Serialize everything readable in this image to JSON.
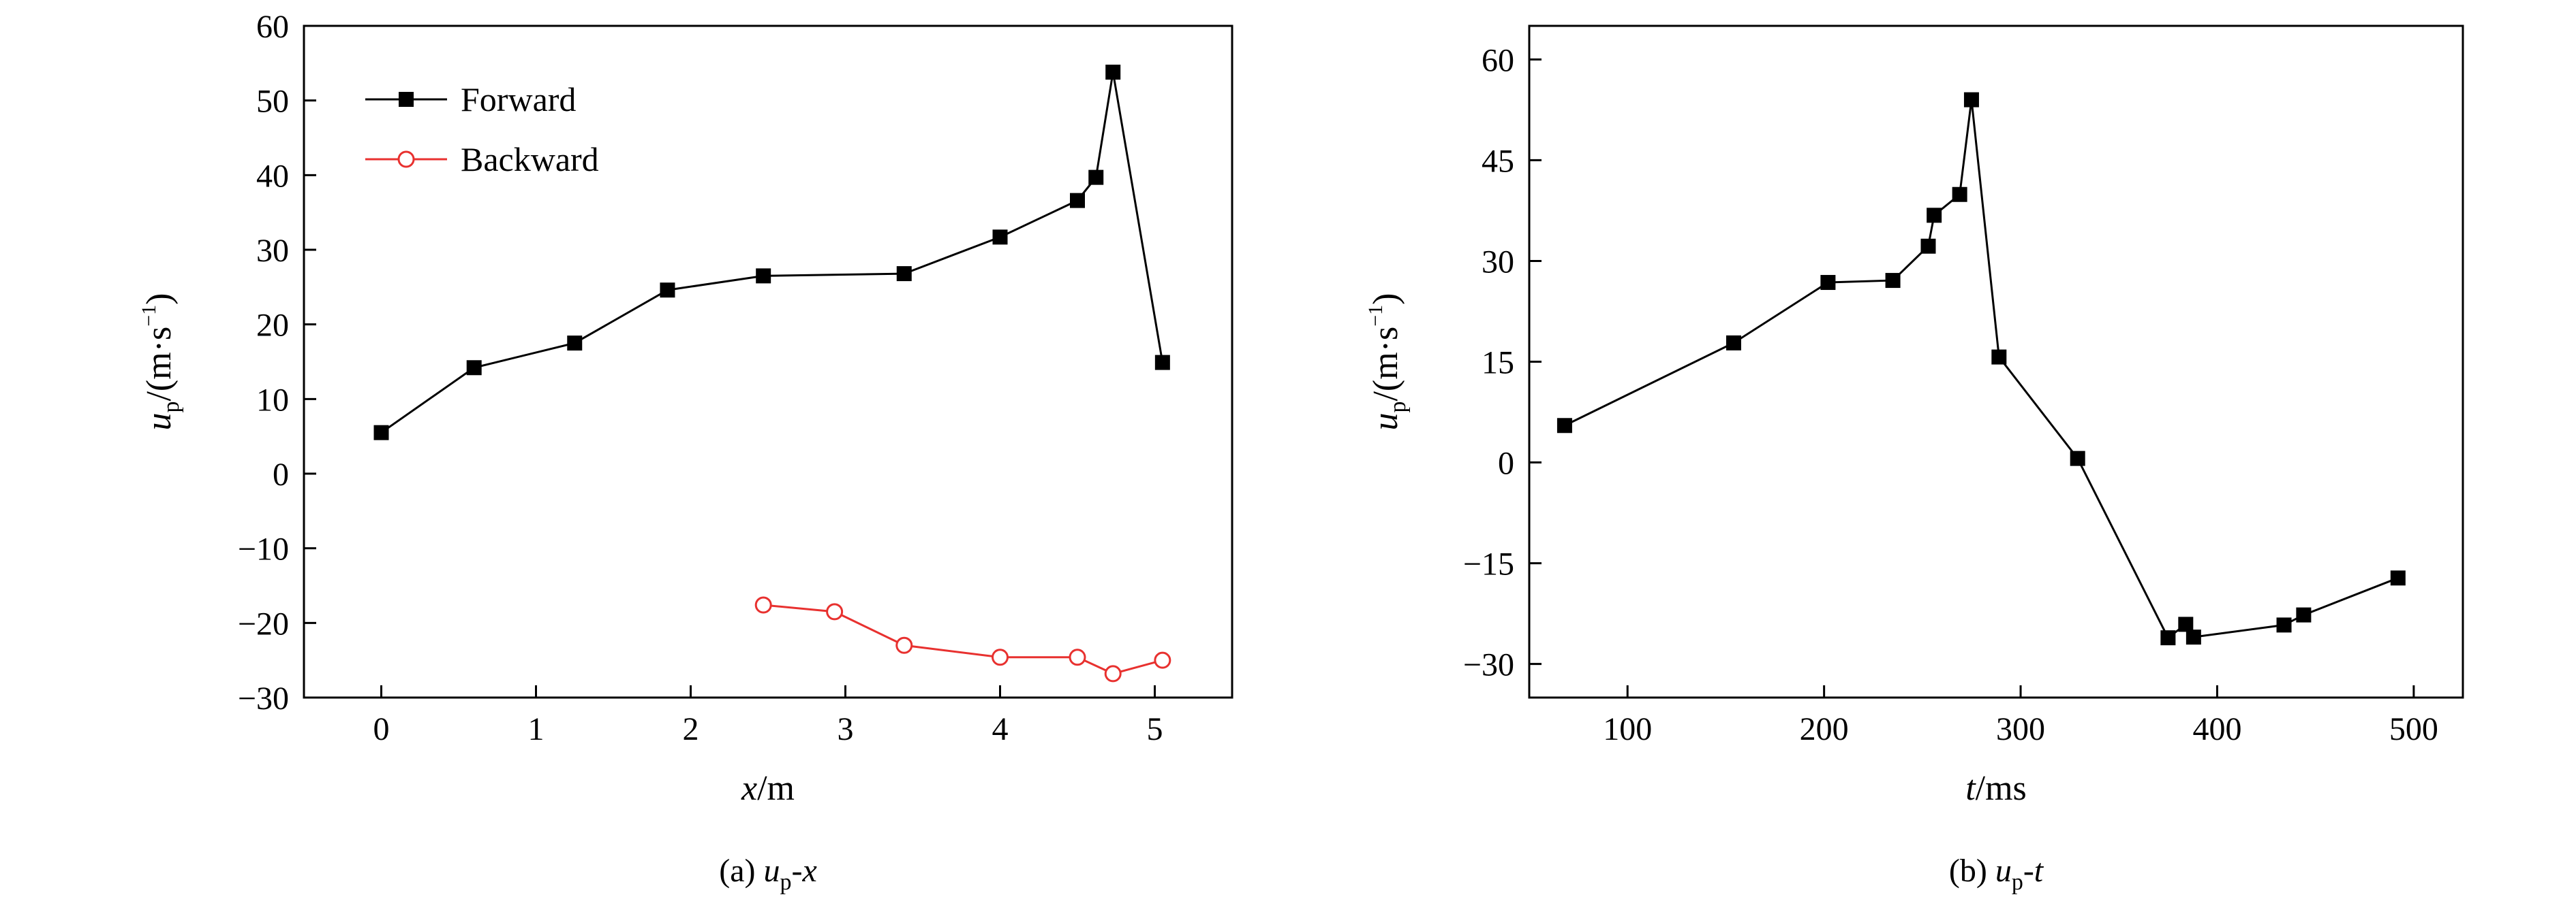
{
  "chart_data": [
    {
      "type": "line",
      "caption": {
        "prefix": "(a) ",
        "var": "u",
        "sub": "p",
        "suffix": "-x"
      },
      "xlabel": {
        "var": "x",
        "unit": "/m"
      },
      "ylabel": {
        "var": "u",
        "sub": "p",
        "unit": "/(m·s",
        "sup": "−1",
        "close": ")"
      },
      "xlim": [
        -0.5,
        5.5
      ],
      "ylim": [
        -30,
        60
      ],
      "xticks": [
        0,
        1,
        2,
        3,
        4,
        5
      ],
      "xtick_labels": [
        "0",
        "1",
        "2",
        "3",
        "4",
        "5"
      ],
      "yticks": [
        -30,
        -20,
        -10,
        0,
        10,
        20,
        30,
        40,
        50,
        60
      ],
      "ytick_labels": [
        "−30",
        "−20",
        "−10",
        "0",
        "10",
        "20",
        "30",
        "40",
        "50",
        "60"
      ],
      "legend_position": "top-left",
      "series": [
        {
          "name": "Forward",
          "marker": "filled-square",
          "color": "#000000",
          "x": [
            0,
            0.6,
            1.25,
            1.85,
            2.47,
            3.38,
            4.0,
            4.5,
            4.62,
            4.73,
            5.05
          ],
          "y": [
            5.5,
            14.2,
            17.5,
            24.6,
            26.5,
            26.8,
            31.7,
            36.6,
            39.7,
            53.8,
            14.9
          ]
        },
        {
          "name": "Backward",
          "marker": "open-circle",
          "color": "#e8312f",
          "x": [
            2.47,
            2.93,
            3.38,
            4.0,
            4.5,
            4.73,
            5.05
          ],
          "y": [
            -17.6,
            -18.5,
            -23.0,
            -24.6,
            -24.6,
            -26.8,
            -25.0
          ]
        }
      ]
    },
    {
      "type": "line",
      "caption": {
        "prefix": "(b) ",
        "var": "u",
        "sub": "p",
        "suffix": "-t"
      },
      "xlabel": {
        "var": "t",
        "unit": "/ms"
      },
      "ylabel": {
        "var": "u",
        "sub": "p",
        "unit": "/(m·s",
        "sup": "−1",
        "close": ")"
      },
      "xlim": [
        50,
        525
      ],
      "ylim": [
        -35,
        65
      ],
      "xticks": [
        100,
        200,
        300,
        400,
        500
      ],
      "xtick_labels": [
        "100",
        "200",
        "300",
        "400",
        "500"
      ],
      "yticks": [
        -30,
        -15,
        0,
        15,
        30,
        45,
        60
      ],
      "ytick_labels": [
        "−30",
        "−15",
        "0",
        "15",
        "30",
        "45",
        "60"
      ],
      "series": [
        {
          "name": "",
          "marker": "filled-square",
          "color": "#000000",
          "x": [
            68,
            154,
            202,
            235,
            253,
            256,
            269,
            275,
            289,
            329,
            375,
            384,
            388,
            434,
            444,
            492
          ],
          "y": [
            5.5,
            17.8,
            26.8,
            27.1,
            32.2,
            36.8,
            39.9,
            54.0,
            15.7,
            0.6,
            -26.1,
            -24.1,
            -26.0,
            -24.2,
            -22.7,
            -17.2
          ]
        }
      ]
    }
  ]
}
